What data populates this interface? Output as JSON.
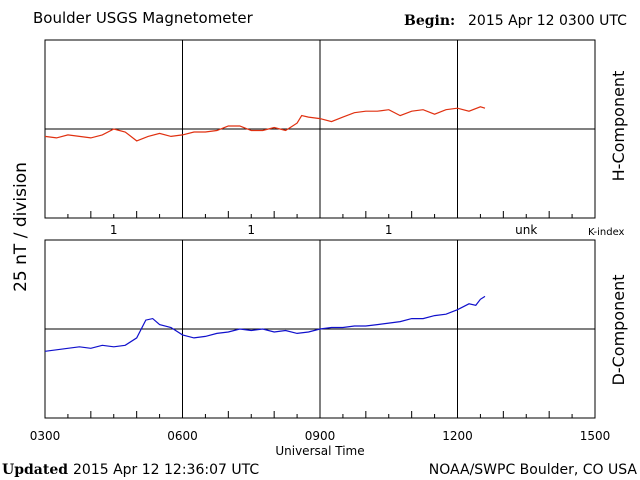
{
  "header": {
    "title": "Boulder USGS Magnetometer",
    "begin_label": "Begin:",
    "begin_value": "2015 Apr 12 0300 UTC"
  },
  "footer": {
    "updated_label": "Updated",
    "updated_value": "2015 Apr 12 12:36:07 UTC",
    "credit": "NOAA/SWPC Boulder, CO USA"
  },
  "colors": {
    "h_component": "#e03010",
    "d_component": "#1010cc",
    "k_index_marker": "#cc0000",
    "axis": "#000000"
  },
  "chart_data": [
    {
      "type": "line",
      "title": "H-Component",
      "ylabel": "25 nT / division",
      "xlabel": "Universal Time",
      "x_ticks": [
        "0300",
        "0600",
        "0900",
        "1200",
        "1500"
      ],
      "xlim": [
        3,
        15
      ],
      "ylim": [
        -3,
        3
      ],
      "grid": true,
      "k_index_label": "K-index",
      "k_index": [
        {
          "x": 4.5,
          "label": "1"
        },
        {
          "x": 7.5,
          "label": "1"
        },
        {
          "x": 10.5,
          "label": "1"
        },
        {
          "x": 13.5,
          "label": "unk"
        }
      ],
      "series": [
        {
          "name": "H-Component",
          "x": [
            3.0,
            3.25,
            3.5,
            3.75,
            4.0,
            4.25,
            4.5,
            4.75,
            5.0,
            5.25,
            5.5,
            5.75,
            6.0,
            6.25,
            6.5,
            6.75,
            7.0,
            7.25,
            7.5,
            7.75,
            8.0,
            8.25,
            8.5,
            8.6,
            8.75,
            9.0,
            9.25,
            9.5,
            9.75,
            10.0,
            10.25,
            10.5,
            10.75,
            11.0,
            11.25,
            11.5,
            11.75,
            12.0,
            12.25,
            12.5,
            12.6
          ],
          "y": [
            -0.25,
            -0.3,
            -0.2,
            -0.25,
            -0.3,
            -0.2,
            0.0,
            -0.1,
            -0.4,
            -0.25,
            -0.15,
            -0.25,
            -0.2,
            -0.1,
            -0.1,
            -0.05,
            0.1,
            0.1,
            -0.05,
            -0.05,
            0.05,
            -0.05,
            0.2,
            0.45,
            0.4,
            0.35,
            0.25,
            0.4,
            0.55,
            0.6,
            0.6,
            0.65,
            0.45,
            0.6,
            0.65,
            0.5,
            0.65,
            0.7,
            0.6,
            0.75,
            0.7
          ]
        }
      ]
    },
    {
      "type": "line",
      "title": "D-Component",
      "ylabel": "25 nT / division",
      "xlabel": "Universal Time",
      "x_ticks": [
        "0300",
        "0600",
        "0900",
        "1200",
        "1500"
      ],
      "xlim": [
        3,
        15
      ],
      "ylim": [
        -3,
        3
      ],
      "grid": true,
      "series": [
        {
          "name": "D-Component",
          "x": [
            3.0,
            3.25,
            3.5,
            3.75,
            4.0,
            4.25,
            4.5,
            4.75,
            5.0,
            5.2,
            5.35,
            5.5,
            5.75,
            6.0,
            6.25,
            6.5,
            6.75,
            7.0,
            7.25,
            7.5,
            7.75,
            8.0,
            8.25,
            8.5,
            8.75,
            9.0,
            9.25,
            9.5,
            9.75,
            10.0,
            10.25,
            10.5,
            10.75,
            11.0,
            11.25,
            11.5,
            11.75,
            12.0,
            12.25,
            12.4,
            12.5,
            12.6
          ],
          "y": [
            -0.75,
            -0.7,
            -0.65,
            -0.6,
            -0.65,
            -0.55,
            -0.6,
            -0.55,
            -0.3,
            0.3,
            0.35,
            0.15,
            0.05,
            -0.2,
            -0.3,
            -0.25,
            -0.15,
            -0.1,
            0.0,
            -0.05,
            0.0,
            -0.1,
            -0.05,
            -0.15,
            -0.1,
            0.0,
            0.05,
            0.05,
            0.1,
            0.1,
            0.15,
            0.2,
            0.25,
            0.35,
            0.35,
            0.45,
            0.5,
            0.65,
            0.85,
            0.8,
            1.0,
            1.1
          ]
        }
      ]
    }
  ]
}
